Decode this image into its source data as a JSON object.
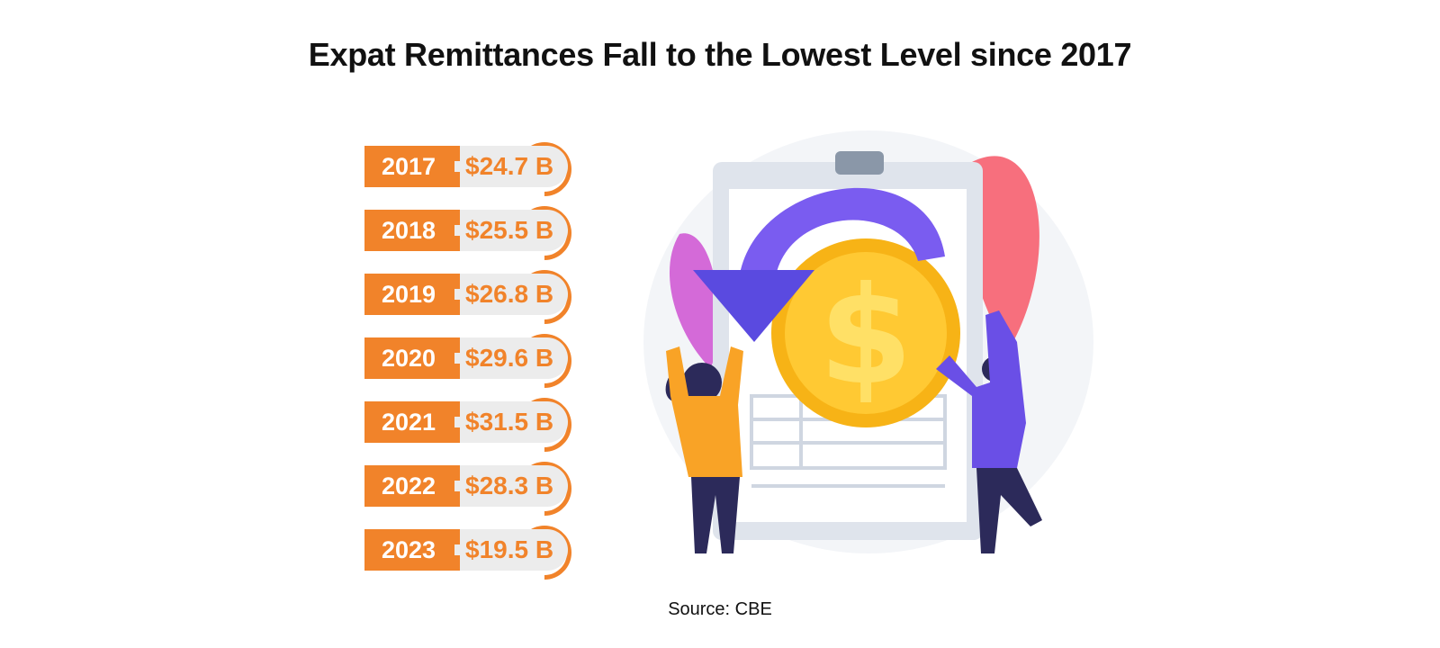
{
  "title": "Expat Remittances Fall to the Lowest Level since 2017",
  "source": "Source: CBE",
  "colors": {
    "accent": "#f1832a",
    "value_bg": "#ececec"
  },
  "chart_data": {
    "type": "table",
    "title": "Expat Remittances Fall to the Lowest Level since 2017",
    "categories": [
      "2017",
      "2018",
      "2019",
      "2020",
      "2021",
      "2022",
      "2023"
    ],
    "values": [
      24.7,
      25.5,
      26.8,
      29.6,
      31.5,
      28.3,
      19.5
    ],
    "value_labels": [
      "$24.7 B",
      "$25.5 B",
      "$26.8 B",
      "$29.6 B",
      "$31.5 B",
      "$28.3 B",
      "$19.5 B"
    ]
  }
}
